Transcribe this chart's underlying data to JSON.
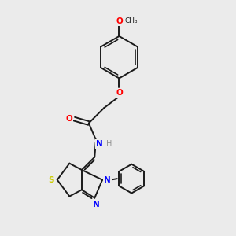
{
  "bg_color": "#ebebeb",
  "bond_color": "#1a1a1a",
  "atom_colors": {
    "O": "#ff0000",
    "N": "#0000ff",
    "S": "#cccc00",
    "C": "#1a1a1a",
    "H": "#909090"
  },
  "figsize": [
    3.0,
    3.0
  ],
  "dpi": 100
}
